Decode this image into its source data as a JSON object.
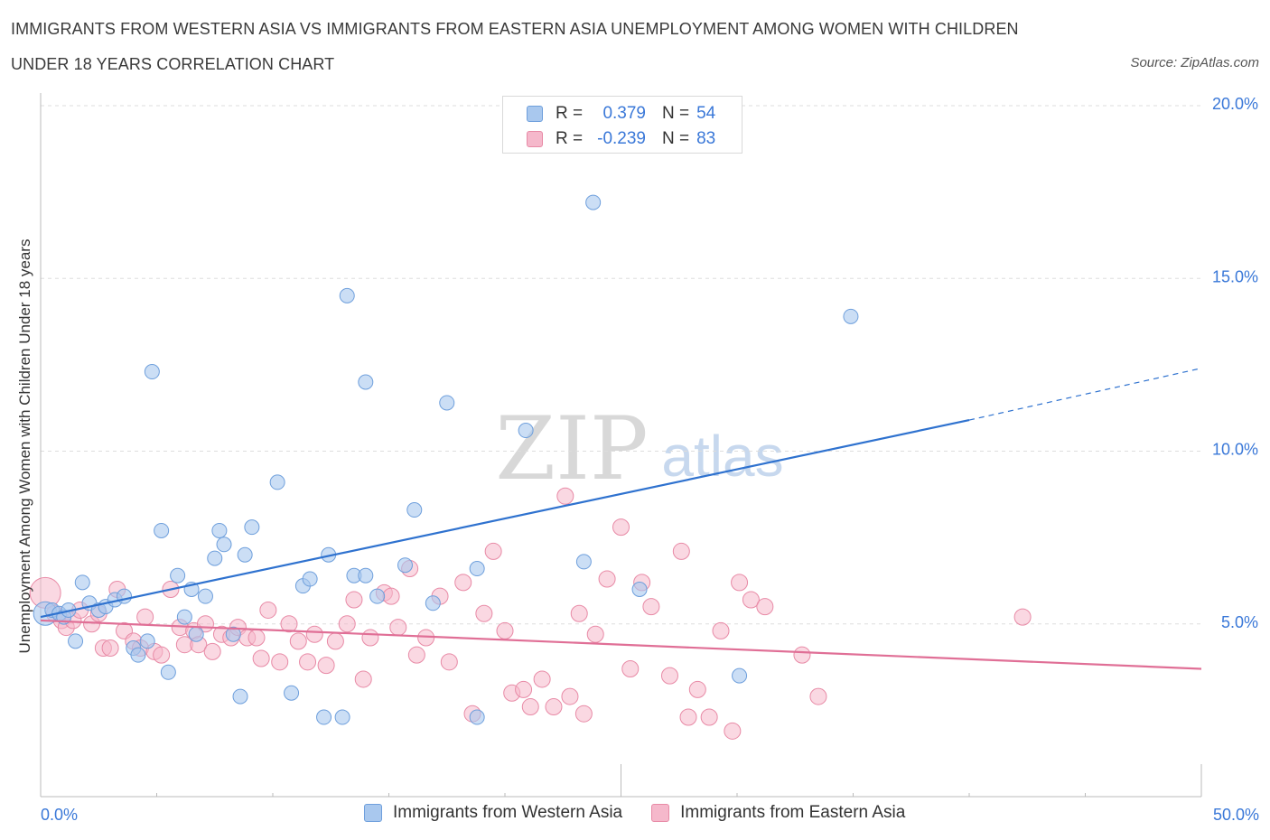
{
  "title_line1": "IMMIGRANTS FROM WESTERN ASIA VS IMMIGRANTS FROM EASTERN ASIA UNEMPLOYMENT AMONG WOMEN WITH CHILDREN",
  "title_line2": "UNDER 18 YEARS CORRELATION CHART",
  "source": "Source: ZipAtlas.com",
  "watermark": {
    "zip": "ZIP",
    "atlas": "atlas"
  },
  "colors": {
    "blue_fill": "#a9c8ee",
    "blue_stroke": "#6e9fdc",
    "blue_line": "#2f72cf",
    "pink_fill": "#f5b8cb",
    "pink_stroke": "#e88aa6",
    "pink_line": "#e06f96",
    "tick_label": "#3a78d8",
    "grid": "#dddddd"
  },
  "legend": {
    "rows": [
      {
        "label": "R =",
        "r": "0.379",
        "n_label": "N =",
        "n": "54",
        "color": "#a9c8ee",
        "border": "#6e9fdc"
      },
      {
        "label": "R =",
        "r": "-0.239",
        "n_label": "N =",
        "n": "83",
        "color": "#f5b8cb",
        "border": "#e88aa6"
      }
    ]
  },
  "bottom_legend": [
    {
      "label": "Immigrants from Western Asia",
      "color": "#a9c8ee",
      "border": "#6e9fdc"
    },
    {
      "label": "Immigrants from Eastern Asia",
      "color": "#f5b8cb",
      "border": "#e88aa6"
    }
  ],
  "chart_data": {
    "type": "scatter",
    "title": "IMMIGRANTS FROM WESTERN ASIA VS IMMIGRANTS FROM EASTERN ASIA UNEMPLOYMENT AMONG WOMEN WITH CHILDREN UNDER 18 YEARS CORRELATION CHART",
    "xlabel": "",
    "ylabel": "Unemployment Among Women with Children Under 18 years",
    "xlim": [
      0,
      50
    ],
    "ylim": [
      0,
      20
    ],
    "x_tick_labels": [
      {
        "value": 0,
        "label": "0.0%"
      },
      {
        "value": 50,
        "label": "50.0%"
      }
    ],
    "y_tick_labels": [
      {
        "value": 5,
        "label": "5.0%"
      },
      {
        "value": 10,
        "label": "10.0%"
      },
      {
        "value": 15,
        "label": "15.0%"
      },
      {
        "value": 20,
        "label": "20.0%"
      }
    ],
    "grid": true,
    "legend_position": "top-center",
    "series": [
      {
        "name": "Immigrants from Western Asia",
        "R": 0.379,
        "N": 54,
        "trend": {
          "x_start": 0,
          "y_start": 5.2,
          "x_end": 40,
          "y_end": 10.9,
          "dashed_to_x": 50,
          "dashed_to_y": 12.4
        },
        "points": [
          [
            0.2,
            5.3
          ],
          [
            0.5,
            5.4
          ],
          [
            0.8,
            5.3
          ],
          [
            1.0,
            5.2
          ],
          [
            1.2,
            5.4
          ],
          [
            1.5,
            4.5
          ],
          [
            1.8,
            6.2
          ],
          [
            2.1,
            5.6
          ],
          [
            2.5,
            5.4
          ],
          [
            2.8,
            5.5
          ],
          [
            3.2,
            5.7
          ],
          [
            3.6,
            5.8
          ],
          [
            4.0,
            4.3
          ],
          [
            4.2,
            4.1
          ],
          [
            4.6,
            4.5
          ],
          [
            4.8,
            12.3
          ],
          [
            5.2,
            7.7
          ],
          [
            5.5,
            3.6
          ],
          [
            5.9,
            6.4
          ],
          [
            6.2,
            5.2
          ],
          [
            6.5,
            6.0
          ],
          [
            6.7,
            4.7
          ],
          [
            7.1,
            5.8
          ],
          [
            7.5,
            6.9
          ],
          [
            7.7,
            7.7
          ],
          [
            7.9,
            7.3
          ],
          [
            8.3,
            4.7
          ],
          [
            8.6,
            2.9
          ],
          [
            8.8,
            7.0
          ],
          [
            9.1,
            7.8
          ],
          [
            10.2,
            9.1
          ],
          [
            10.8,
            3.0
          ],
          [
            11.3,
            6.1
          ],
          [
            11.6,
            6.3
          ],
          [
            12.2,
            2.3
          ],
          [
            12.4,
            7.0
          ],
          [
            13.0,
            2.3
          ],
          [
            13.2,
            14.5
          ],
          [
            13.5,
            6.4
          ],
          [
            14.0,
            6.4
          ],
          [
            14.0,
            12.0
          ],
          [
            14.5,
            5.8
          ],
          [
            15.7,
            6.7
          ],
          [
            16.1,
            8.3
          ],
          [
            16.9,
            5.6
          ],
          [
            17.5,
            11.4
          ],
          [
            18.8,
            2.3
          ],
          [
            18.8,
            6.6
          ],
          [
            20.9,
            10.6
          ],
          [
            23.4,
            6.8
          ],
          [
            23.8,
            17.2
          ],
          [
            25.8,
            6.0
          ],
          [
            30.1,
            3.5
          ],
          [
            34.9,
            13.9
          ]
        ]
      },
      {
        "name": "Immigrants from Eastern Asia",
        "R": -0.239,
        "N": 83,
        "trend": {
          "x_start": 0,
          "y_start": 5.1,
          "x_end": 50,
          "y_end": 3.7
        },
        "points": [
          [
            0.2,
            5.9
          ],
          [
            0.6,
            5.3
          ],
          [
            0.9,
            5.1
          ],
          [
            1.1,
            4.9
          ],
          [
            1.4,
            5.1
          ],
          [
            1.7,
            5.4
          ],
          [
            2.2,
            5.0
          ],
          [
            2.5,
            5.3
          ],
          [
            2.7,
            4.3
          ],
          [
            3.0,
            4.3
          ],
          [
            3.3,
            6.0
          ],
          [
            3.6,
            4.8
          ],
          [
            4.0,
            4.5
          ],
          [
            4.3,
            4.3
          ],
          [
            4.5,
            5.2
          ],
          [
            4.9,
            4.2
          ],
          [
            5.2,
            4.1
          ],
          [
            5.6,
            6.0
          ],
          [
            6.0,
            4.9
          ],
          [
            6.2,
            4.4
          ],
          [
            6.6,
            4.8
          ],
          [
            6.8,
            4.4
          ],
          [
            7.1,
            5.0
          ],
          [
            7.4,
            4.2
          ],
          [
            7.8,
            4.7
          ],
          [
            8.2,
            4.6
          ],
          [
            8.5,
            4.9
          ],
          [
            8.9,
            4.6
          ],
          [
            9.3,
            4.6
          ],
          [
            9.5,
            4.0
          ],
          [
            9.8,
            5.4
          ],
          [
            10.3,
            3.9
          ],
          [
            10.7,
            5.0
          ],
          [
            11.1,
            4.5
          ],
          [
            11.5,
            3.9
          ],
          [
            11.8,
            4.7
          ],
          [
            12.3,
            3.8
          ],
          [
            12.7,
            4.5
          ],
          [
            13.2,
            5.0
          ],
          [
            13.5,
            5.7
          ],
          [
            13.9,
            3.4
          ],
          [
            14.2,
            4.6
          ],
          [
            14.8,
            5.9
          ],
          [
            15.1,
            5.8
          ],
          [
            15.4,
            4.9
          ],
          [
            15.9,
            6.6
          ],
          [
            16.2,
            4.1
          ],
          [
            16.6,
            4.6
          ],
          [
            17.2,
            5.8
          ],
          [
            17.6,
            3.9
          ],
          [
            18.2,
            6.2
          ],
          [
            18.6,
            2.4
          ],
          [
            19.1,
            5.3
          ],
          [
            19.5,
            7.1
          ],
          [
            20.0,
            4.8
          ],
          [
            20.3,
            3.0
          ],
          [
            20.8,
            3.1
          ],
          [
            21.1,
            2.6
          ],
          [
            21.6,
            3.4
          ],
          [
            22.1,
            2.6
          ],
          [
            22.6,
            8.7
          ],
          [
            22.8,
            2.9
          ],
          [
            23.2,
            5.3
          ],
          [
            23.4,
            2.4
          ],
          [
            23.9,
            4.7
          ],
          [
            24.4,
            6.3
          ],
          [
            25.0,
            7.8
          ],
          [
            25.4,
            3.7
          ],
          [
            25.9,
            6.2
          ],
          [
            26.3,
            5.5
          ],
          [
            27.1,
            3.5
          ],
          [
            27.6,
            7.1
          ],
          [
            27.9,
            2.3
          ],
          [
            28.3,
            3.1
          ],
          [
            28.8,
            2.3
          ],
          [
            29.3,
            4.8
          ],
          [
            29.8,
            1.9
          ],
          [
            30.1,
            6.2
          ],
          [
            30.6,
            5.7
          ],
          [
            31.2,
            5.5
          ],
          [
            32.8,
            4.1
          ],
          [
            33.5,
            2.9
          ],
          [
            42.3,
            5.2
          ]
        ]
      }
    ]
  }
}
